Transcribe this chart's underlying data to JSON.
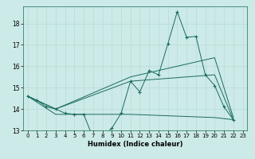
{
  "xlabel": "Humidex (Indice chaleur)",
  "ylabel": "",
  "bg_color": "#cceae7",
  "line_color": "#1a6b5e",
  "grid_color": "#b8dbd8",
  "xlim": [
    -0.5,
    23.5
  ],
  "ylim": [
    13.0,
    18.8
  ],
  "yticks": [
    13,
    14,
    15,
    16,
    17,
    18
  ],
  "xticks": [
    0,
    1,
    2,
    3,
    4,
    5,
    6,
    7,
    8,
    9,
    10,
    11,
    12,
    13,
    14,
    15,
    16,
    17,
    18,
    19,
    20,
    21,
    22,
    23
  ],
  "lines": [
    {
      "x": [
        0,
        1,
        2,
        3,
        4,
        5,
        6,
        7,
        8,
        9,
        10,
        11,
        12,
        13,
        14,
        15,
        16,
        17,
        18,
        19,
        20,
        21,
        22
      ],
      "y": [
        14.6,
        14.4,
        14.1,
        14.0,
        13.8,
        13.75,
        13.75,
        12.65,
        12.7,
        13.1,
        13.8,
        15.3,
        14.8,
        15.8,
        15.6,
        17.05,
        18.55,
        17.35,
        17.4,
        15.6,
        15.1,
        14.1,
        13.5
      ],
      "marker": true
    },
    {
      "x": [
        0,
        3,
        11,
        20,
        22
      ],
      "y": [
        14.6,
        14.0,
        15.3,
        15.6,
        13.5
      ],
      "marker": false
    },
    {
      "x": [
        0,
        3,
        11,
        20,
        22
      ],
      "y": [
        14.6,
        14.0,
        15.5,
        16.4,
        13.6
      ],
      "marker": false
    },
    {
      "x": [
        0,
        3,
        11,
        20,
        22
      ],
      "y": [
        14.6,
        13.75,
        13.75,
        13.6,
        13.5
      ],
      "marker": false
    }
  ]
}
